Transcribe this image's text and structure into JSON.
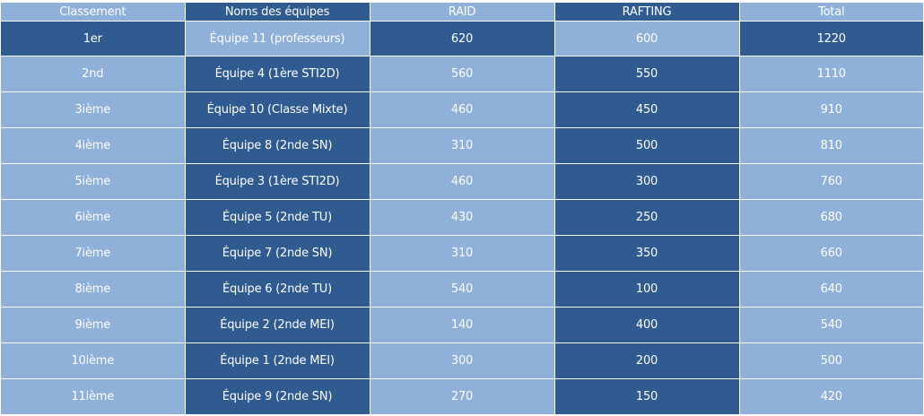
{
  "table": {
    "headers": [
      "Classement",
      "Noms des équipes",
      "RAID",
      "RAFTING",
      "Total"
    ],
    "rows": [
      [
        "1er",
        "Équipe 11 (professeurs)",
        "620",
        "600",
        "1220"
      ],
      [
        "2nd",
        "Équipe 4 (1ère STI2D)",
        "560",
        "550",
        "1110"
      ],
      [
        "3ième",
        "Équipe 10 (Classe Mixte)",
        "460",
        "450",
        "910"
      ],
      [
        "4ième",
        "Équipe 8 (2nde SN)",
        "310",
        "500",
        "810"
      ],
      [
        "5ième",
        "Équipe 3 (1ère STI2D)",
        "460",
        "300",
        "760"
      ],
      [
        "6ième",
        "Équipe 5 (2nde TU)",
        "430",
        "250",
        "680"
      ],
      [
        "7ième",
        "Équipe 7 (2nde SN)",
        "310",
        "350",
        "660"
      ],
      [
        "8ième",
        "Équipe 6 (2nde TU)",
        "540",
        "100",
        "640"
      ],
      [
        "9ième",
        "Équipe 2 (2nde MEI)",
        "140",
        "400",
        "540"
      ],
      [
        "10ième",
        "Équipe 1 (2nde MEI)",
        "300",
        "200",
        "500"
      ],
      [
        "11ième",
        "Équipe 9 (2nde SN)",
        "270",
        "150",
        "420"
      ]
    ]
  },
  "colors": {
    "light": "#8fb0d9",
    "dark": "#2f5b91"
  }
}
